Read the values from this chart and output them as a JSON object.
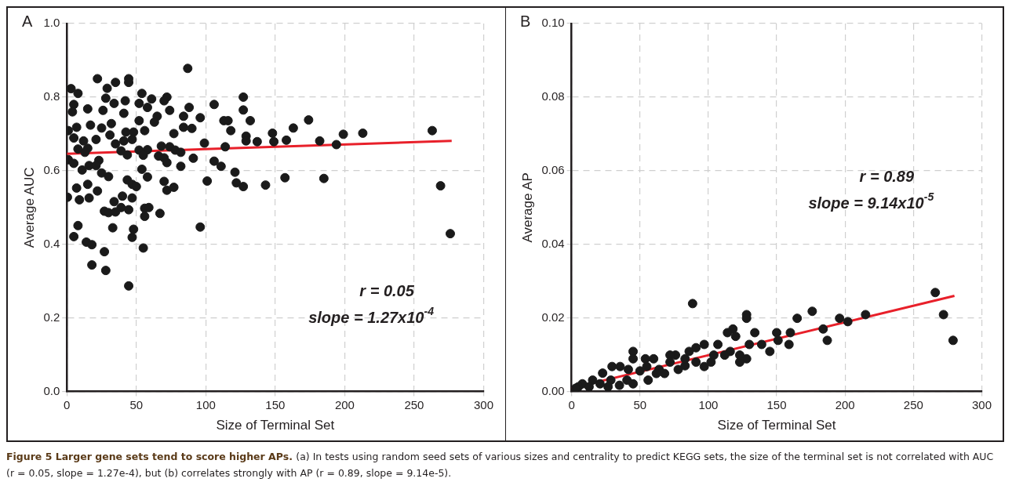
{
  "chart_data": [
    {
      "type": "scatter",
      "title": "A",
      "xlabel": "Size of Terminal Set",
      "ylabel": "Average AUC",
      "xlim": [
        0,
        300
      ],
      "xticks": [
        0,
        50,
        100,
        150,
        200,
        250,
        300
      ],
      "ylim": [
        0,
        1
      ],
      "yticks": [
        {
          "value": 0,
          "label": "0.0"
        },
        {
          "value": 0.2,
          "label": "0.2"
        },
        {
          "value": 0.4,
          "label": "0.4"
        },
        {
          "value": 0.6,
          "label": "0.6"
        },
        {
          "value": 0.8,
          "label": "0.8"
        },
        {
          "value": 1,
          "label": "1.0"
        }
      ],
      "grid": true,
      "marker": "circle",
      "annotations": [
        "r = 0.05",
        "slope = 1.27x10$^{-4}$",
        "Figure 5 Larger gene sets tend to score higher APs.",
        "(a) In tests using random seed sets of various sizes and centrality to predict KEGG sets, the size of the terminal set is not correlated with AUC (r = 0.05, slope = 1.27e-4), but (b) correlates strongly with AP (r = 0.89, slope = 9.14e-5)."
      ],
      "series": [
        {
          "color": "#1a1a1a",
          "x": [
            87,
            22,
            44.5,
            44.5,
            35,
            29,
            3,
            8,
            54,
            28,
            61,
            72,
            127,
            106,
            52,
            34,
            42,
            70,
            5,
            4,
            15,
            26,
            58,
            88,
            74,
            127,
            41,
            84,
            96,
            65,
            52,
            63,
            113,
            116,
            132,
            174,
            17,
            32,
            7,
            25,
            84,
            90,
            1,
            163,
            263,
            213,
            199,
            148,
            31,
            42.5,
            56,
            48,
            77,
            118,
            129,
            5,
            12,
            21,
            47,
            41,
            137,
            182,
            158,
            129,
            149,
            99,
            35,
            68,
            74,
            194,
            114,
            8,
            15,
            39,
            52,
            58,
            78,
            43.5,
            55,
            13,
            82,
            66,
            70,
            1,
            5,
            23,
            91,
            72,
            106,
            82,
            16,
            21,
            111,
            11,
            54,
            25,
            30,
            58,
            121,
            157,
            185,
            101,
            43.5,
            47,
            70,
            15,
            50,
            77,
            72,
            122,
            127,
            143,
            269,
            7,
            22,
            40,
            0.4,
            9,
            16,
            47,
            34,
            56,
            59,
            27,
            30,
            35,
            39,
            44.5,
            67,
            56,
            8,
            96,
            33,
            48,
            5,
            47,
            276,
            14,
            18,
            27,
            55,
            18,
            28,
            44.5
          ],
          "values": [
            0.878,
            0.85,
            0.85,
            0.84,
            0.84,
            0.824,
            0.823,
            0.81,
            0.81,
            0.797,
            0.795,
            0.8,
            0.8,
            0.78,
            0.783,
            0.783,
            0.79,
            0.79,
            0.78,
            0.76,
            0.768,
            0.764,
            0.772,
            0.772,
            0.764,
            0.765,
            0.756,
            0.748,
            0.744,
            0.748,
            0.736,
            0.732,
            0.736,
            0.736,
            0.736,
            0.738,
            0.724,
            0.728,
            0.718,
            0.716,
            0.718,
            0.715,
            0.709,
            0.716,
            0.709,
            0.702,
            0.699,
            0.702,
            0.697,
            0.705,
            0.709,
            0.705,
            0.701,
            0.709,
            0.694,
            0.689,
            0.681,
            0.685,
            0.685,
            0.681,
            0.679,
            0.681,
            0.683,
            0.681,
            0.679,
            0.675,
            0.673,
            0.667,
            0.665,
            0.671,
            0.665,
            0.659,
            0.661,
            0.654,
            0.656,
            0.657,
            0.656,
            0.643,
            0.642,
            0.65,
            0.65,
            0.64,
            0.635,
            0.63,
            0.62,
            0.628,
            0.634,
            0.622,
            0.626,
            0.612,
            0.614,
            0.614,
            0.612,
            0.602,
            0.604,
            0.594,
            0.584,
            0.583,
            0.596,
            0.581,
            0.579,
            0.572,
            0.575,
            0.563,
            0.571,
            0.563,
            0.557,
            0.555,
            0.547,
            0.567,
            0.557,
            0.561,
            0.559,
            0.553,
            0.545,
            0.531,
            0.528,
            0.521,
            0.526,
            0.526,
            0.516,
            0.498,
            0.5,
            0.49,
            0.486,
            0.488,
            0.5,
            0.494,
            0.484,
            0.476,
            0.451,
            0.447,
            0.445,
            0.441,
            0.421,
            0.419,
            0.429,
            0.406,
            0.399,
            0.38,
            0.39,
            0.344,
            0.329,
            0.287
          ]
        },
        {
          "type": "line",
          "marker": "none",
          "color": "#e8202a",
          "x": [
            0,
            277
          ],
          "values": [
            0.646,
            0.681
          ]
        }
      ]
    },
    {
      "type": "scatter",
      "title": "B",
      "xlabel": "Size of Terminal Set",
      "ylabel": "Average AP",
      "xlim": [
        0,
        300
      ],
      "xticks": [
        0,
        50,
        100,
        150,
        200,
        250,
        300
      ],
      "ylim": [
        0,
        0.1
      ],
      "yticks": [
        {
          "value": 0,
          "label": "0.00"
        },
        {
          "value": 0.02,
          "label": "0.02"
        },
        {
          "value": 0.04,
          "label": "0.04"
        },
        {
          "value": 0.06,
          "label": "0.06"
        },
        {
          "value": 0.08,
          "label": "0.08"
        },
        {
          "value": 0.1,
          "label": "0.10"
        }
      ],
      "grid": true,
      "marker": "circle",
      "annotations": [
        "r = 0.89",
        "slope = 9.14x10$^{-5}$"
      ],
      "series": [
        {
          "color": "#1a1a1a",
          "x": [
            266,
            88.5,
            272,
            279,
            176,
            215,
            196,
            202,
            165,
            128,
            128,
            184,
            187,
            160,
            159,
            150,
            151,
            145,
            139,
            134,
            130,
            128,
            123,
            123,
            118,
            114,
            120,
            116,
            112,
            107,
            102,
            97,
            97,
            91,
            86,
            91,
            83,
            76,
            72,
            78,
            68,
            72,
            60,
            54,
            55,
            56,
            50,
            45,
            45,
            45,
            41.5,
            35.5,
            29.6,
            22.7,
            35,
            28.7,
            15.4,
            7.9,
            5,
            20.8,
            40.5,
            64,
            62,
            12.8,
            26.7,
            3,
            104,
            83
          ],
          "values": [
            0.0269,
            0.0239,
            0.0209,
            0.0139,
            0.0218,
            0.0209,
            0.0199,
            0.019,
            0.0199,
            0.0209,
            0.0199,
            0.017,
            0.0139,
            0.016,
            0.0128,
            0.016,
            0.0139,
            0.0109,
            0.0128,
            0.016,
            0.0128,
            0.0089,
            0.008,
            0.0099,
            0.017,
            0.016,
            0.015,
            0.0109,
            0.0099,
            0.0128,
            0.008,
            0.0128,
            0.0068,
            0.0119,
            0.0109,
            0.008,
            0.007,
            0.0099,
            0.0099,
            0.006,
            0.0049,
            0.008,
            0.0089,
            0.0089,
            0.0068,
            0.0031,
            0.0056,
            0.0109,
            0.0089,
            0.0021,
            0.006,
            0.0068,
            0.0068,
            0.005,
            0.0017,
            0.0031,
            0.0031,
            0.0021,
            0.0013,
            0.0021,
            0.0031,
            0.006,
            0.0049,
            0.0013,
            0.0013,
            0.0009,
            0.0099,
            0.0089
          ]
        },
        {
          "type": "line",
          "marker": "none",
          "color": "#e8202a",
          "x": [
            0,
            280
          ],
          "values": [
            0.0009,
            0.026
          ]
        }
      ]
    }
  ]
}
